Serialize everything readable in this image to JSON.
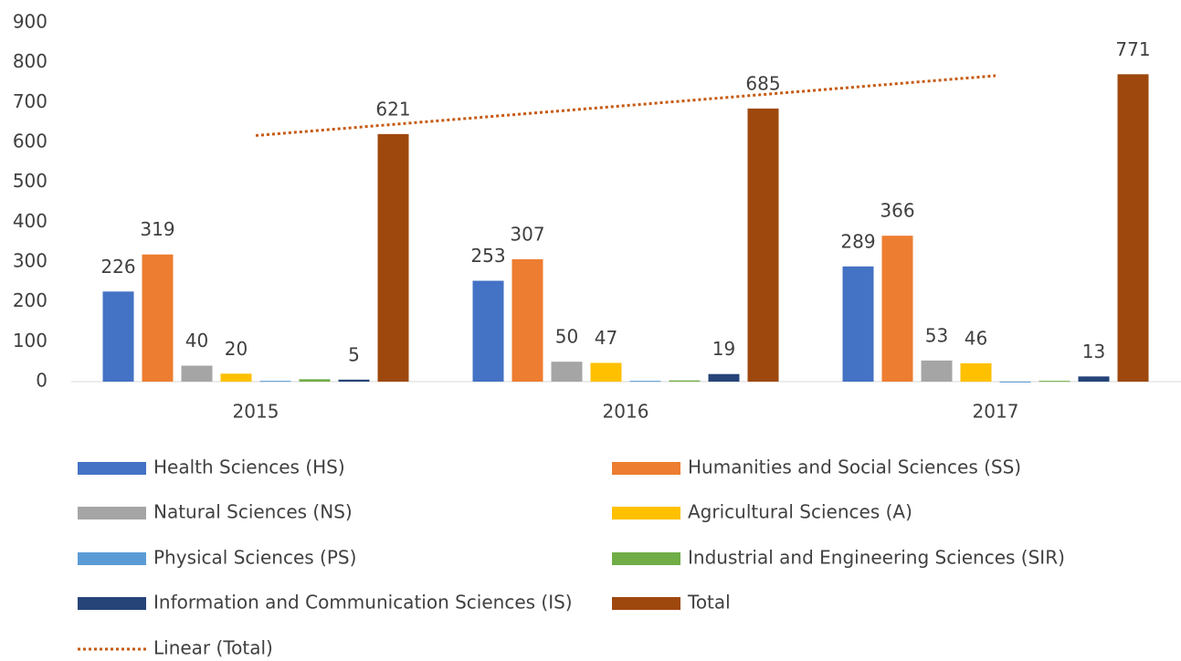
{
  "chart_data": {
    "type": "bar",
    "categories": [
      "2015",
      "2016",
      "2017"
    ],
    "ylim": [
      0,
      900
    ],
    "yticks": [
      0,
      100,
      200,
      300,
      400,
      500,
      600,
      700,
      800,
      900
    ],
    "grid": false,
    "series": [
      {
        "name": "Health Sciences (HS)",
        "color": "#4472c4",
        "values": [
          226,
          253,
          289
        ],
        "show_labels": true
      },
      {
        "name": "Humanities and Social Sciences (SS)",
        "color": "#ed7d31",
        "values": [
          319,
          307,
          366
        ],
        "show_labels": true
      },
      {
        "name": "Natural Sciences (NS)",
        "color": "#a5a5a5",
        "values": [
          40,
          50,
          53
        ],
        "show_labels": true
      },
      {
        "name": "Agricultural Sciences (A)",
        "color": "#ffc000",
        "values": [
          20,
          47,
          46
        ],
        "show_labels": true
      },
      {
        "name": "Physical Sciences (PS)",
        "color": "#5b9bd5",
        "values": [
          2,
          2,
          0
        ],
        "show_labels": false
      },
      {
        "name": "Industrial and Engineering Sciences (SIR)",
        "color": "#70ad47",
        "values": [
          6,
          3,
          2
        ],
        "show_labels": false
      },
      {
        "name": "Information and Communication Sciences (IS)",
        "color": "#264478",
        "values": [
          5,
          19,
          13
        ],
        "show_labels": true
      },
      {
        "name": "Total",
        "color": "#9e480e",
        "values": [
          621,
          685,
          771
        ],
        "show_labels": true
      }
    ],
    "trendline": {
      "name": "Linear (Total)",
      "series_index": 7,
      "color": "#c55a11"
    }
  }
}
